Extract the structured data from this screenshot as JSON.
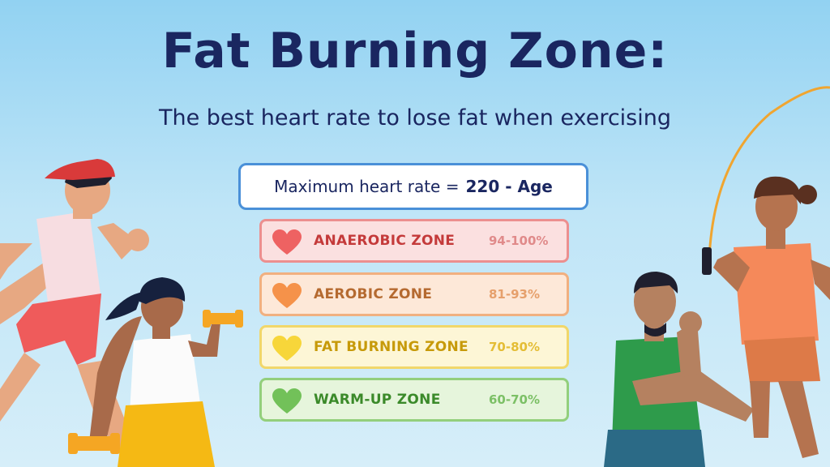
{
  "title": "Fat Burning Zone:",
  "subtitle": "The best heart rate to lose fat when exercising",
  "formula": {
    "label": "Maximum heart rate =",
    "value": "220 - Age"
  },
  "zones": [
    {
      "name": "ANAEROBIC ZONE",
      "range": "94-100%",
      "color": "#c43a3a",
      "range_color": "#e08a8a",
      "bg": "#fbe0e0",
      "border": "#ec8f8f",
      "heart": "#ee6262"
    },
    {
      "name": "AEROBIC ZONE",
      "range": "81-93%",
      "color": "#b56a30",
      "range_color": "#e6a06c",
      "bg": "#fde8d8",
      "border": "#f1b080",
      "heart": "#f5924a"
    },
    {
      "name": "FAT BURNING ZONE",
      "range": "70-80%",
      "color": "#c79a0a",
      "range_color": "#e4bd35",
      "bg": "#fdf6d6",
      "border": "#f1d76a",
      "heart": "#f7d63a"
    },
    {
      "name": "WARM-UP ZONE",
      "range": "60-70%",
      "color": "#3b8a2a",
      "range_color": "#7cc066",
      "bg": "#e6f5dc",
      "border": "#93cf7c",
      "heart": "#72c159"
    }
  ]
}
